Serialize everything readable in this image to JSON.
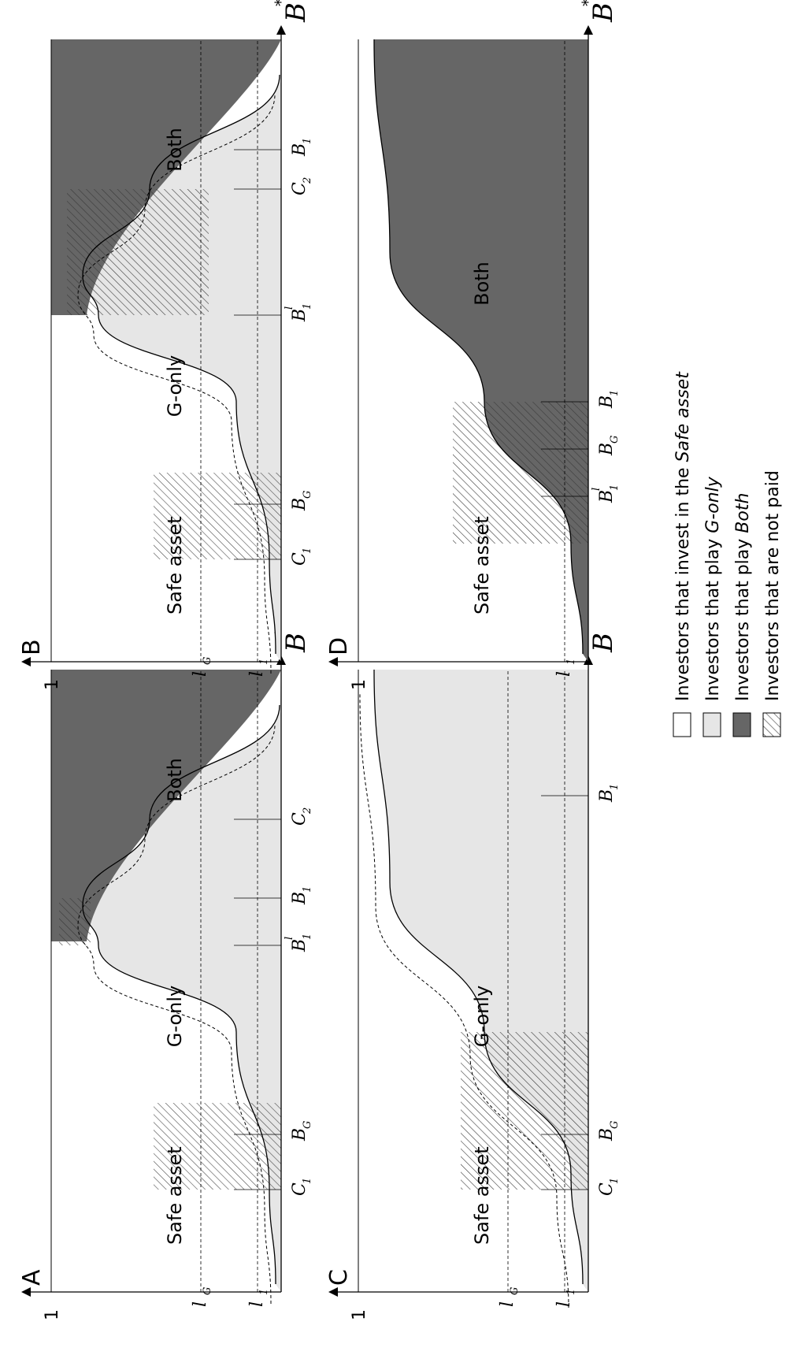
{
  "colors": {
    "safe": "#ffffff",
    "g_only": "#e6e6e6",
    "both": "#666666",
    "hatch_line": "#3a3a3a",
    "axis": "#000000"
  },
  "axis_labels": {
    "y_top": "1",
    "x_main": "B",
    "x_sup": "*",
    "lG_base": "l",
    "lG_sup": "*",
    "lG_sub": "G",
    "l1_base": "l",
    "l1_sup": "*",
    "l1_sub": "1"
  },
  "panels": [
    {
      "id": "A",
      "letter": "A",
      "show_lG": true,
      "regions": {
        "safe": "Safe asset",
        "g_only": "G-only",
        "both": "Both"
      },
      "ticks": [
        {
          "base": "C",
          "sub": "1"
        },
        {
          "base": "B",
          "sub": "G"
        },
        {
          "base": "B",
          "sub": "1",
          "sup": "l"
        },
        {
          "base": "B",
          "sub": "1"
        },
        {
          "base": "C",
          "sub": "2"
        }
      ]
    },
    {
      "id": "B",
      "letter": "B",
      "show_lG": true,
      "regions": {
        "safe": "Safe asset",
        "g_only": "G-only",
        "both": "Both"
      },
      "ticks": [
        {
          "base": "C",
          "sub": "1"
        },
        {
          "base": "B",
          "sub": "G"
        },
        {
          "base": "B",
          "sub": "1",
          "sup": "l"
        },
        {
          "base": "C",
          "sub": "2"
        },
        {
          "base": "B",
          "sub": "1"
        }
      ]
    },
    {
      "id": "C",
      "letter": "C",
      "show_lG": true,
      "regions": {
        "safe": "Safe asset",
        "g_only": "G-only"
      },
      "ticks": [
        {
          "base": "C",
          "sub": "1"
        },
        {
          "base": "B",
          "sub": "G"
        },
        {
          "base": "B",
          "sub": "1"
        }
      ]
    },
    {
      "id": "D",
      "letter": "D",
      "show_lG": false,
      "regions": {
        "safe": "Safe asset",
        "both": "Both"
      },
      "ticks": [
        {
          "base": "B",
          "sub": "1",
          "sup": "l"
        },
        {
          "base": "B",
          "sub": "G"
        },
        {
          "base": "B",
          "sub": "1"
        }
      ]
    }
  ],
  "legend": [
    {
      "key": "safe",
      "prefix": "Investors that invest in the ",
      "emph": "Safe asset"
    },
    {
      "key": "g_only",
      "prefix": "Investors that play ",
      "emph": "G-only"
    },
    {
      "key": "both",
      "prefix": "Investors that play ",
      "emph": "Both"
    },
    {
      "key": "hatch",
      "prefix": "Investors that are not paid",
      "emph": ""
    }
  ]
}
